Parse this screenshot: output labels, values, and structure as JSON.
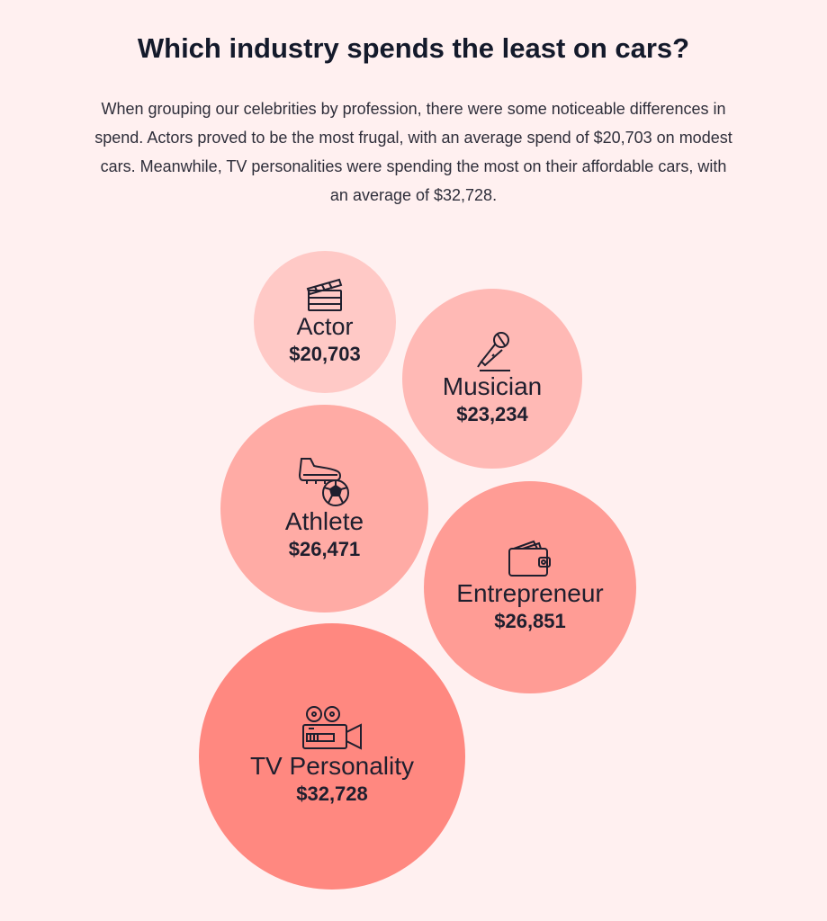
{
  "header": {
    "title": "Which industry spends the least on cars?",
    "intro": "When grouping our celebrities by profession, there were some noticeable differences in spend. Actors proved to be the most frugal, with an average spend of $20,703 on modest cars. Meanwhile, TV personalities were spending the most on their affordable cars, with an average of $32,728."
  },
  "chart_data": {
    "type": "bubble",
    "title": "Which industry spends the least on cars?",
    "categories": [
      "Actor",
      "Musician",
      "Athlete",
      "Entrepreneur",
      "TV Personality"
    ],
    "values": [
      20703,
      23234,
      26471,
      26851,
      32728
    ],
    "series": [
      {
        "name": "Actor",
        "value": 20703,
        "label": "$20,703",
        "icon": "clapperboard-icon",
        "color": "#ffc9c6"
      },
      {
        "name": "Musician",
        "value": 23234,
        "label": "$23,234",
        "icon": "microphone-icon",
        "color": "#ffb9b5"
      },
      {
        "name": "Athlete",
        "value": 26471,
        "label": "$26,471",
        "icon": "football-boot-icon",
        "color": "#ffaba5"
      },
      {
        "name": "Entrepreneur",
        "value": 26851,
        "label": "$26,851",
        "icon": "wallet-icon",
        "color": "#ff9c95"
      },
      {
        "name": "TV Personality",
        "value": 32728,
        "label": "$32,728",
        "icon": "film-camera-icon",
        "color": "#ff8880"
      }
    ]
  }
}
